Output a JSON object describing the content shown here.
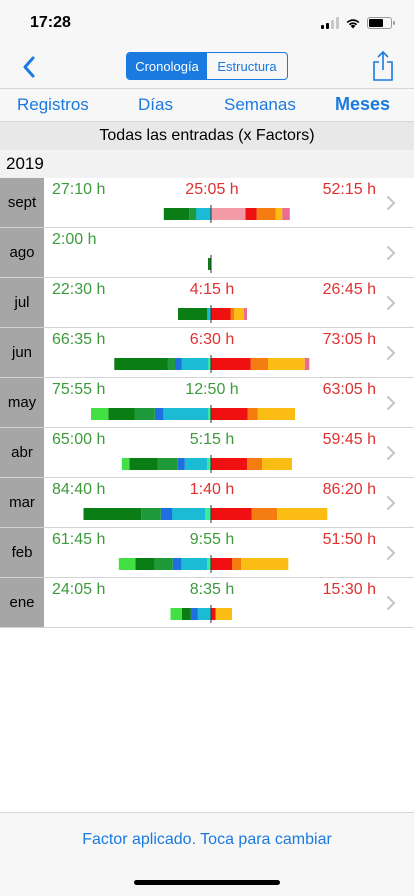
{
  "status": {
    "time": "17:28"
  },
  "nav": {
    "segments": [
      "Cronología",
      "Estructura"
    ],
    "active_segment": 0
  },
  "tabs": [
    {
      "label": "Registros",
      "active": false
    },
    {
      "label": "Días",
      "active": false
    },
    {
      "label": "Semanas",
      "active": false
    },
    {
      "label": "Meses",
      "active": true
    }
  ],
  "section_header": "Todas las entradas (x Factors)",
  "year": "2019",
  "colors": {
    "positive_text": "#3d9b3d",
    "negative_text": "#e03030",
    "accent": "#1a7ae0",
    "segments": {
      "mint": "#3dea9a",
      "cyan": "#1bbbd6",
      "blue": "#1f6fe0",
      "green_mid": "#1e9a3a",
      "green_dark": "#0a7e14",
      "green_light": "#43e043",
      "red": "#ef1111",
      "orange": "#f57c10",
      "yellow": "#fbbc14",
      "pink": "#ea6d8f",
      "pink_light": "#f29ba7"
    }
  },
  "months": [
    {
      "label": "sept",
      "left": "27:10 h",
      "middle": "25:05 h",
      "middle_sign": "negative",
      "right": "52:15 h",
      "bars_left": [
        [
          "cyan",
          2.0
        ],
        [
          "green_mid",
          0.9
        ],
        [
          "green_dark",
          3.4
        ]
      ],
      "bars_right": [
        [
          "pink_light",
          4.6
        ],
        [
          "red",
          1.5
        ],
        [
          "orange",
          2.5
        ],
        [
          "yellow",
          0.9
        ],
        [
          "pink",
          1.0
        ]
      ]
    },
    {
      "label": "ago",
      "left": "2:00 h",
      "middle": "",
      "middle_sign": "positive",
      "right": "",
      "bars_left": [
        [
          "green_dark",
          0.4
        ]
      ],
      "bars_right": []
    },
    {
      "label": "jul",
      "left": "22:30 h",
      "middle": "4:15 h",
      "middle_sign": "negative",
      "right": "26:45 h",
      "bars_left": [
        [
          "cyan",
          0.5
        ],
        [
          "green_dark",
          3.9
        ]
      ],
      "bars_right": [
        [
          "red",
          2.6
        ],
        [
          "orange",
          0.5
        ],
        [
          "yellow",
          1.3
        ],
        [
          "pink",
          0.4
        ]
      ]
    },
    {
      "label": "jun",
      "left": "66:35 h",
      "middle": "6:30 h",
      "middle_sign": "negative",
      "right": "73:05 h",
      "bars_left": [
        [
          "mint",
          0.4
        ],
        [
          "cyan",
          3.5
        ],
        [
          "blue",
          0.9
        ],
        [
          "green_mid",
          1.0
        ],
        [
          "green_dark",
          7.1
        ]
      ],
      "bars_right": [
        [
          "red",
          5.3
        ],
        [
          "orange",
          2.3
        ],
        [
          "yellow",
          4.9
        ],
        [
          "pink",
          0.6
        ]
      ]
    },
    {
      "label": "may",
      "left": "75:55 h",
      "middle": "12:50 h",
      "middle_sign": "positive",
      "right": "63:05 h",
      "bars_left": [
        [
          "mint",
          0.4
        ],
        [
          "cyan",
          6.0
        ],
        [
          "blue",
          1.1
        ],
        [
          "green_mid",
          2.7
        ],
        [
          "green_dark",
          3.5
        ],
        [
          "green_light",
          2.3
        ]
      ],
      "bars_right": [
        [
          "red",
          4.9
        ],
        [
          "orange",
          1.3
        ],
        [
          "yellow",
          5.0
        ]
      ]
    },
    {
      "label": "abr",
      "left": "65:00 h",
      "middle": "5:15 h",
      "middle_sign": "positive",
      "right": "59:45 h",
      "bars_left": [
        [
          "mint",
          0.5
        ],
        [
          "cyan",
          3.0
        ],
        [
          "blue",
          1.0
        ],
        [
          "green_mid",
          2.6
        ],
        [
          "green_dark",
          3.8
        ],
        [
          "green_light",
          1.0
        ]
      ],
      "bars_right": [
        [
          "red",
          4.8
        ],
        [
          "orange",
          2.0
        ],
        [
          "yellow",
          4.0
        ]
      ]
    },
    {
      "label": "mar",
      "left": "84:40 h",
      "middle": "1:40 h",
      "middle_sign": "negative",
      "right": "86:20 h",
      "bars_left": [
        [
          "mint",
          0.8
        ],
        [
          "cyan",
          4.4
        ],
        [
          "blue",
          1.5
        ],
        [
          "green_mid",
          2.6
        ],
        [
          "green_dark",
          7.7
        ]
      ],
      "bars_right": [
        [
          "red",
          5.4
        ],
        [
          "orange",
          3.4
        ],
        [
          "yellow",
          6.7
        ]
      ]
    },
    {
      "label": "feb",
      "left": "61:45 h",
      "middle": "9:55 h",
      "middle_sign": "positive",
      "right": "51:50 h",
      "bars_left": [
        [
          "mint",
          0.5
        ],
        [
          "cyan",
          3.5
        ],
        [
          "blue",
          1.1
        ],
        [
          "green_mid",
          2.5
        ],
        [
          "green_dark",
          2.5
        ],
        [
          "green_light",
          2.2
        ]
      ],
      "bars_right": [
        [
          "red",
          2.8
        ],
        [
          "orange",
          1.2
        ],
        [
          "yellow",
          6.3
        ]
      ]
    },
    {
      "label": "ene",
      "left": "24:05 h",
      "middle": "8:35 h",
      "middle_sign": "positive",
      "right": "15:30 h",
      "bars_left": [
        [
          "cyan",
          1.8
        ],
        [
          "blue",
          0.9
        ],
        [
          "green_dark",
          1.2
        ],
        [
          "green_light",
          1.5
        ]
      ],
      "bars_right": [
        [
          "red",
          0.6
        ],
        [
          "yellow",
          2.2
        ]
      ]
    }
  ],
  "footer": {
    "label": "Factor aplicado. Toca para cambiar"
  }
}
